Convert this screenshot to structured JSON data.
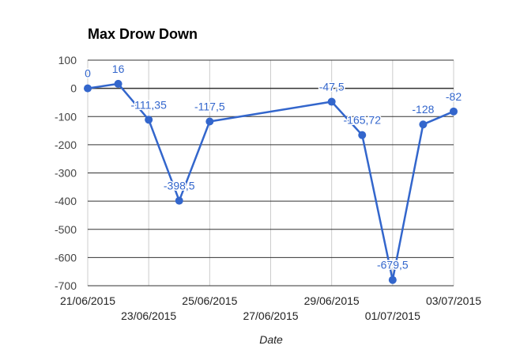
{
  "chart_data": {
    "type": "line",
    "title": "Max Drow Down",
    "xlabel": "Date",
    "ylabel": "",
    "ylim": [
      -700,
      100
    ],
    "yticks": [
      "100",
      "0",
      "-100",
      "-200",
      "-300",
      "-400",
      "-500",
      "-600",
      "-700"
    ],
    "xlim": [
      "2015-06-21",
      "2015-07-03"
    ],
    "x_tick_labels": [
      "21/06/2015",
      "23/06/2015",
      "25/06/2015",
      "27/06/2015",
      "29/06/2015",
      "01/07/2015",
      "03/07/2015"
    ],
    "grid": true,
    "legend": "none",
    "series": [
      {
        "color": "#3366cc",
        "points": [
          {
            "x": "2015-06-21",
            "y": 0,
            "label": "0"
          },
          {
            "x": "2015-06-22",
            "y": 16,
            "label": "16"
          },
          {
            "x": "2015-06-23",
            "y": -111.35,
            "label": "-111,35"
          },
          {
            "x": "2015-06-24",
            "y": -398.5,
            "label": "-398,5"
          },
          {
            "x": "2015-06-25",
            "y": -117.5,
            "label": "-117,5"
          },
          {
            "x": "2015-06-29",
            "y": -47.5,
            "label": "-47,5"
          },
          {
            "x": "2015-06-30",
            "y": -165.72,
            "label": "-165,72"
          },
          {
            "x": "2015-07-01",
            "y": -679.5,
            "label": "-679,5"
          },
          {
            "x": "2015-07-02",
            "y": -128,
            "label": "-128"
          },
          {
            "x": "2015-07-03",
            "y": -82,
            "label": "-82"
          }
        ]
      }
    ]
  }
}
